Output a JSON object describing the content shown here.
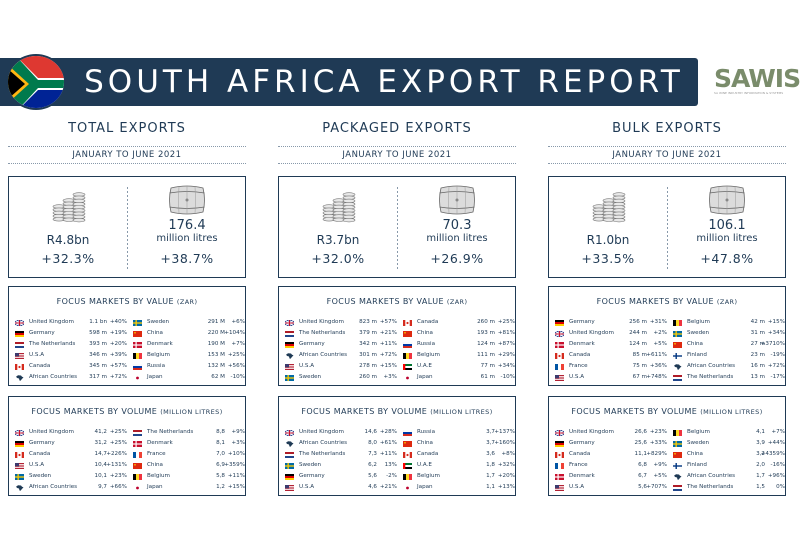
{
  "header": {
    "title": "SOUTH AFRICA EXPORT REPORT",
    "logo_text": "SAWIS",
    "logo_subtext": "SA WINE INDUSTRY INFORMATION & SYSTEMS"
  },
  "columns": [
    {
      "title": "TOTAL EXPORTS",
      "period": "JANUARY TO JUNE 2021",
      "value_amount": "R4.8bn",
      "value_growth": "+32.3%",
      "volume_amount": "176.4",
      "volume_unit": "million litres",
      "volume_growth": "+38.7%",
      "by_value_title": "FOCUS MARKETS BY VALUE",
      "by_value_unit": "(ZAR)",
      "by_value": [
        {
          "country": "United Kingdom",
          "value": "1.1 bn",
          "change": "+40%",
          "flag": "uk"
        },
        {
          "country": "Germany",
          "value": "598 m",
          "change": "+19%",
          "flag": "de"
        },
        {
          "country": "The Netherlands",
          "value": "393 m",
          "change": "+20%",
          "flag": "nl"
        },
        {
          "country": "U.S.A",
          "value": "346 m",
          "change": "+39%",
          "flag": "us"
        },
        {
          "country": "Canada",
          "value": "345 m",
          "change": "+57%",
          "flag": "ca"
        },
        {
          "country": "African Countries",
          "value": "317 m",
          "change": "+72%",
          "flag": "af"
        },
        {
          "country": "Sweden",
          "value": "291 M",
          "change": "+6%",
          "flag": "se"
        },
        {
          "country": "China",
          "value": "220 M",
          "change": "+104%",
          "flag": "cn"
        },
        {
          "country": "Denmark",
          "value": "190 M",
          "change": "+7%",
          "flag": "dk"
        },
        {
          "country": "Belgium",
          "value": "153 M",
          "change": "+25%",
          "flag": "be"
        },
        {
          "country": "Russia",
          "value": "132 M",
          "change": "+56%",
          "flag": "ru"
        },
        {
          "country": "Japan",
          "value": "62 M",
          "change": "-10%",
          "flag": "jp"
        }
      ],
      "by_volume_title": "FOCUS MARKETS BY VOLUME",
      "by_volume_unit": "(MILLION LITRES)",
      "by_volume": [
        {
          "country": "United Kingdom",
          "value": "41,2",
          "change": "+25%",
          "flag": "uk"
        },
        {
          "country": "Germany",
          "value": "31,2",
          "change": "+25%",
          "flag": "de"
        },
        {
          "country": "Canada",
          "value": "14,7",
          "change": "+226%",
          "flag": "ca"
        },
        {
          "country": "U.S.A",
          "value": "10,4",
          "change": "+131%",
          "flag": "us"
        },
        {
          "country": "Sweden",
          "value": "10,1",
          "change": "+23%",
          "flag": "se"
        },
        {
          "country": "African Countries",
          "value": "9,7",
          "change": "+66%",
          "flag": "af"
        },
        {
          "country": "The Netherlands",
          "value": "8,8",
          "change": "+9%",
          "flag": "nl"
        },
        {
          "country": "Denmark",
          "value": "8,1",
          "change": "+3%",
          "flag": "dk"
        },
        {
          "country": "France",
          "value": "7,0",
          "change": "+10%",
          "flag": "fr"
        },
        {
          "country": "China",
          "value": "6,9",
          "change": "+359%",
          "flag": "cn"
        },
        {
          "country": "Belgium",
          "value": "5,8",
          "change": "+11%",
          "flag": "be"
        },
        {
          "country": "Japan",
          "value": "1,2",
          "change": "+15%",
          "flag": "jp"
        }
      ]
    },
    {
      "title": "PACKAGED EXPORTS",
      "period": "JANUARY TO JUNE 2021",
      "value_amount": "R3.7bn",
      "value_growth": "+32.0%",
      "volume_amount": "70.3",
      "volume_unit": "million litres",
      "volume_growth": "+26.9%",
      "by_value_title": "FOCUS MARKETS BY VALUE",
      "by_value_unit": "(ZAR)",
      "by_value": [
        {
          "country": "United Kingdom",
          "value": "823 m",
          "change": "+57%",
          "flag": "uk"
        },
        {
          "country": "The Netherlands",
          "value": "379 m",
          "change": "+21%",
          "flag": "nl"
        },
        {
          "country": "Germany",
          "value": "342 m",
          "change": "+11%",
          "flag": "de"
        },
        {
          "country": "African Countries",
          "value": "301 m",
          "change": "+72%",
          "flag": "af"
        },
        {
          "country": "U.S.A",
          "value": "278 m",
          "change": "+15%",
          "flag": "us"
        },
        {
          "country": "Sweden",
          "value": "260 m",
          "change": "+3%",
          "flag": "se"
        },
        {
          "country": "Canada",
          "value": "260 m",
          "change": "+25%",
          "flag": "ca"
        },
        {
          "country": "China",
          "value": "193 m",
          "change": "+81%",
          "flag": "cn"
        },
        {
          "country": "Russia",
          "value": "124 m",
          "change": "+87%",
          "flag": "ru"
        },
        {
          "country": "Belgium",
          "value": "111 m",
          "change": "+29%",
          "flag": "be"
        },
        {
          "country": "U.A.E",
          "value": "77 m",
          "change": "+34%",
          "flag": "ae"
        },
        {
          "country": "Japan",
          "value": "61 m",
          "change": "-10%",
          "flag": "jp"
        }
      ],
      "by_volume_title": "FOCUS MARKETS BY VOLUME",
      "by_volume_unit": "(MILLION LITRES)",
      "by_volume": [
        {
          "country": "United Kingdom",
          "value": "14,6",
          "change": "+28%",
          "flag": "uk"
        },
        {
          "country": "African Countries",
          "value": "8,0",
          "change": "+61%",
          "flag": "af"
        },
        {
          "country": "The Netherlands",
          "value": "7,3",
          "change": "+11%",
          "flag": "nl"
        },
        {
          "country": "Sweden",
          "value": "6,2",
          "change": "13%",
          "flag": "se"
        },
        {
          "country": "Germany",
          "value": "5,6",
          "change": "-2%",
          "flag": "de"
        },
        {
          "country": "U.S.A",
          "value": "4,6",
          "change": "+21%",
          "flag": "us"
        },
        {
          "country": "Russia",
          "value": "3,7",
          "change": "+137%",
          "flag": "ru"
        },
        {
          "country": "China",
          "value": "3,7",
          "change": "+160%",
          "flag": "cn"
        },
        {
          "country": "Canada",
          "value": "3,6",
          "change": "+8%",
          "flag": "ca"
        },
        {
          "country": "U.A.E",
          "value": "1,8",
          "change": "+32%",
          "flag": "ae"
        },
        {
          "country": "Belgium",
          "value": "1,7",
          "change": "+20%",
          "flag": "be"
        },
        {
          "country": "Japan",
          "value": "1,1",
          "change": "+13%",
          "flag": "jp"
        }
      ]
    },
    {
      "title": "BULK EXPORTS",
      "period": "JANUARY TO JUNE 2021",
      "value_amount": "R1.0bn",
      "value_growth": "+33.5%",
      "volume_amount": "106.1",
      "volume_unit": "million litres",
      "volume_growth": "+47.8%",
      "by_value_title": "FOCUS MARKETS BY VALUE",
      "by_value_unit": "(ZAR)",
      "by_value": [
        {
          "country": "Germany",
          "value": "256 m",
          "change": "+31%",
          "flag": "de"
        },
        {
          "country": "United Kingdom",
          "value": "244 m",
          "change": "+2%",
          "flag": "uk"
        },
        {
          "country": "Denmark",
          "value": "124 m",
          "change": "+5%",
          "flag": "dk"
        },
        {
          "country": "Canada",
          "value": "85 m",
          "change": "+611%",
          "flag": "ca"
        },
        {
          "country": "France",
          "value": "75 m",
          "change": "+36%",
          "flag": "fr"
        },
        {
          "country": "U.S.A",
          "value": "67 m",
          "change": "+748%",
          "flag": "us"
        },
        {
          "country": "Belgium",
          "value": "42 m",
          "change": "+15%",
          "flag": "be"
        },
        {
          "country": "Sweden",
          "value": "31 m",
          "change": "+34%",
          "flag": "se"
        },
        {
          "country": "China",
          "value": "27 m",
          "change": "+3710%",
          "flag": "cn"
        },
        {
          "country": "Finland",
          "value": "23 m",
          "change": "-19%",
          "flag": "fi"
        },
        {
          "country": "African Countries",
          "value": "16 m",
          "change": "+72%",
          "flag": "af"
        },
        {
          "country": "The Netherlands",
          "value": "13 m",
          "change": "-17%",
          "flag": "nl"
        }
      ],
      "by_volume_title": "FOCUS MARKETS BY VOLUME",
      "by_volume_unit": "(MILLION LITRES)",
      "by_volume": [
        {
          "country": "United Kingdom",
          "value": "26,6",
          "change": "+23%",
          "flag": "uk"
        },
        {
          "country": "Germany",
          "value": "25,6",
          "change": "+33%",
          "flag": "de"
        },
        {
          "country": "Canada",
          "value": "11,1",
          "change": "+829%",
          "flag": "ca"
        },
        {
          "country": "France",
          "value": "6,8",
          "change": "+9%",
          "flag": "fr"
        },
        {
          "country": "Denmark",
          "value": "6,7",
          "change": "+5%",
          "flag": "dk"
        },
        {
          "country": "U.S.A",
          "value": "5,6",
          "change": "+707%",
          "flag": "us"
        },
        {
          "country": "Belgium",
          "value": "4,1",
          "change": "+7%",
          "flag": "be"
        },
        {
          "country": "Sweden",
          "value": "3,9",
          "change": "+44%",
          "flag": "se"
        },
        {
          "country": "China",
          "value": "3,2",
          "change": "+4359%",
          "flag": "cn"
        },
        {
          "country": "Finland",
          "value": "2,0",
          "change": "-16%",
          "flag": "fi"
        },
        {
          "country": "African Countries",
          "value": "1,7",
          "change": "+96%",
          "flag": "af"
        },
        {
          "country": "The Netherlands",
          "value": "1,5",
          "change": "0%",
          "flag": "nl"
        }
      ]
    }
  ]
}
